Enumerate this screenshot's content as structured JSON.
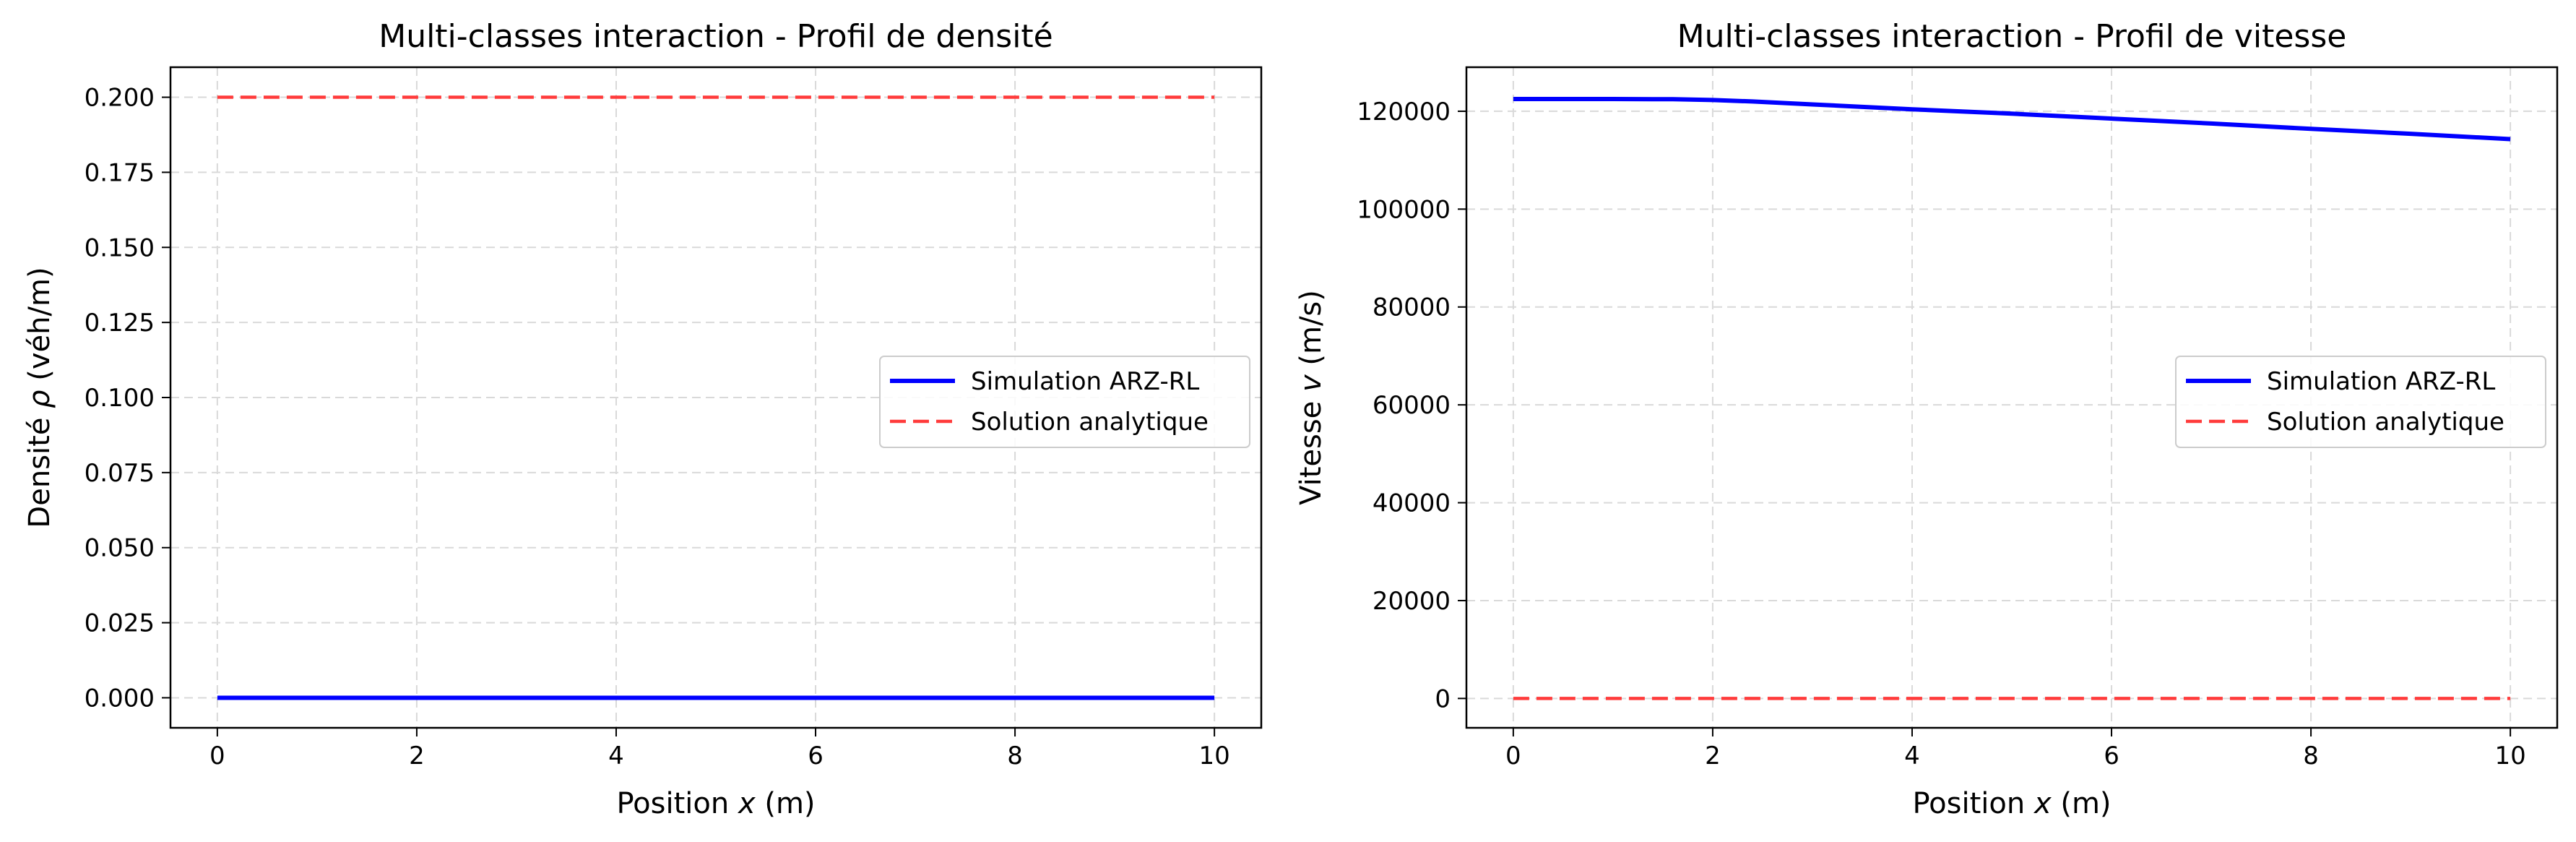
{
  "chart_data": [
    {
      "type": "line",
      "title": "Multi-classes interaction - Profil de densité",
      "xlabel_pre": "Position ",
      "xlabel_var": "x",
      "xlabel_post": " (m)",
      "ylabel_pre": "Densité ",
      "ylabel_var": "ρ",
      "ylabel_post": " (véh/m)",
      "xlim": [
        -0.47,
        10.47
      ],
      "ylim": [
        -0.01,
        0.21
      ],
      "xticks": [
        0,
        2,
        4,
        6,
        8,
        10
      ],
      "yticks": [
        0.0,
        0.025,
        0.05,
        0.075,
        0.1,
        0.125,
        0.15,
        0.175,
        0.2
      ],
      "ytick_labels": [
        "0.000",
        "0.025",
        "0.050",
        "0.075",
        "0.100",
        "0.125",
        "0.150",
        "0.175",
        "0.200"
      ],
      "grid": true,
      "legend_position": "center-right",
      "series": [
        {
          "name": "Simulation ARZ-RL",
          "color": "#0000ff",
          "style": "solid",
          "x": [
            0,
            2,
            4,
            6,
            8,
            10
          ],
          "y": [
            0.0,
            0.0,
            0.0,
            0.0,
            0.0,
            0.0
          ]
        },
        {
          "name": "Solution analytique",
          "color": "#ff3b3b",
          "style": "dashed",
          "x": [
            0,
            2,
            4,
            6,
            8,
            10
          ],
          "y": [
            0.2,
            0.2,
            0.2,
            0.2,
            0.2,
            0.2
          ]
        }
      ]
    },
    {
      "type": "line",
      "title": "Multi-classes interaction - Profil de vitesse",
      "xlabel_pre": "Position ",
      "xlabel_var": "x",
      "xlabel_post": " (m)",
      "ylabel_pre": "Vitesse ",
      "ylabel_var": "v",
      "ylabel_post": " (m/s)",
      "xlim": [
        -0.47,
        10.47
      ],
      "ylim": [
        -6000,
        129000
      ],
      "xticks": [
        0,
        2,
        4,
        6,
        8,
        10
      ],
      "yticks": [
        0,
        20000,
        40000,
        60000,
        80000,
        100000,
        120000
      ],
      "ytick_labels": [
        "0",
        "20000",
        "40000",
        "60000",
        "80000",
        "100000",
        "120000"
      ],
      "grid": true,
      "legend_position": "center-right",
      "series": [
        {
          "name": "Simulation ARZ-RL",
          "color": "#0000ff",
          "style": "solid",
          "x": [
            0,
            1,
            1.6,
            2,
            2.4,
            3,
            4,
            5,
            6,
            7,
            8,
            9,
            10
          ],
          "y": [
            122500,
            122500,
            122450,
            122300,
            122000,
            121400,
            120400,
            119500,
            118500,
            117500,
            116400,
            115400,
            114300
          ]
        },
        {
          "name": "Solution analytique",
          "color": "#ff3b3b",
          "style": "dashed",
          "x": [
            0,
            2,
            4,
            6,
            8,
            10
          ],
          "y": [
            0,
            0,
            0,
            0,
            0,
            0
          ]
        }
      ]
    }
  ]
}
